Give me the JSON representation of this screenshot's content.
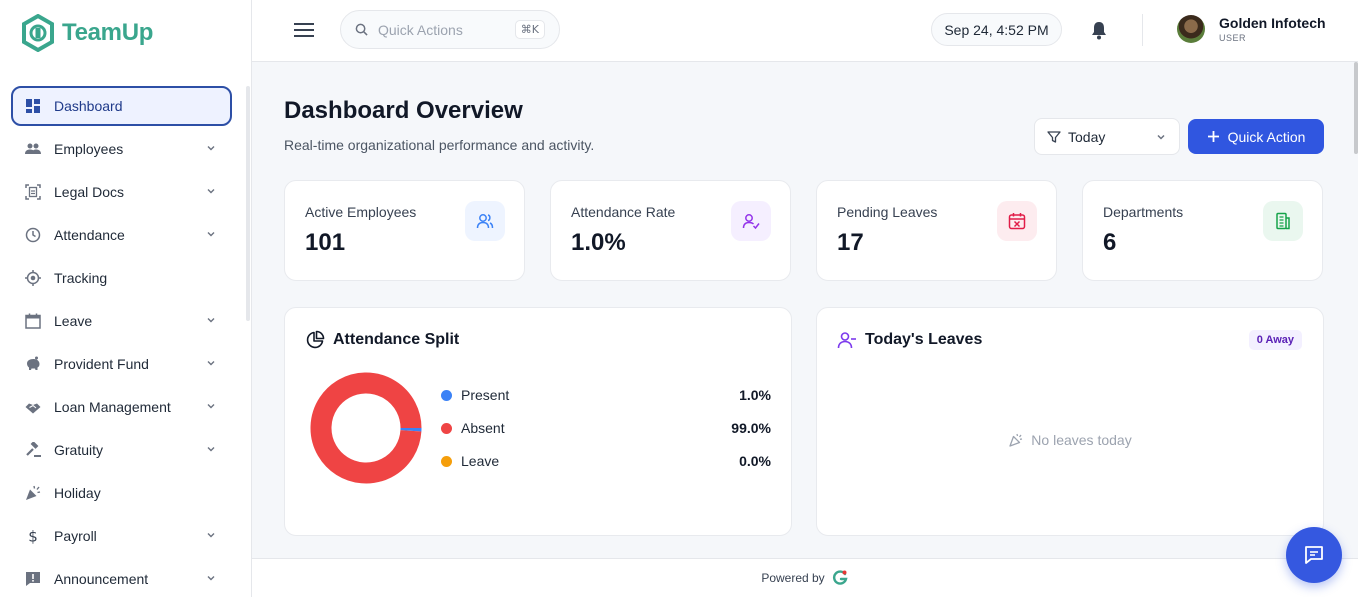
{
  "app": {
    "name": "TeamUp"
  },
  "sidebar": {
    "items": [
      {
        "label": "Dashboard",
        "icon": "dashboard-icon",
        "active": true,
        "expandable": false
      },
      {
        "label": "Employees",
        "icon": "people-icon",
        "expandable": true
      },
      {
        "label": "Legal Docs",
        "icon": "document-scan-icon",
        "expandable": true
      },
      {
        "label": "Attendance",
        "icon": "clock-icon",
        "expandable": true
      },
      {
        "label": "Tracking",
        "icon": "target-icon",
        "expandable": false
      },
      {
        "label": "Leave",
        "icon": "calendar-icon",
        "expandable": true
      },
      {
        "label": "Provident Fund",
        "icon": "piggy-bank-icon",
        "expandable": true
      },
      {
        "label": "Loan Management",
        "icon": "handshake-icon",
        "expandable": true
      },
      {
        "label": "Gratuity",
        "icon": "gavel-icon",
        "expandable": true
      },
      {
        "label": "Holiday",
        "icon": "party-icon",
        "expandable": false
      },
      {
        "label": "Payroll",
        "icon": "dollar-icon",
        "expandable": true
      },
      {
        "label": "Announcement",
        "icon": "announcement-icon",
        "expandable": true
      }
    ]
  },
  "header": {
    "search_placeholder": "Quick Actions",
    "shortcut": "⌘K",
    "datetime": "Sep 24, 4:52 PM",
    "user": {
      "name": "Golden Infotech",
      "role": "USER"
    }
  },
  "main": {
    "title": "Dashboard Overview",
    "subtitle": "Real-time organizational performance and activity.",
    "filter_value": "Today",
    "quick_action_label": "Quick Action",
    "stats": [
      {
        "label": "Active Employees",
        "value": "101",
        "icon": "users-icon",
        "color": "#3b82f6",
        "bg": "#eef4ff"
      },
      {
        "label": "Attendance Rate",
        "value": "1.0%",
        "icon": "user-check-icon",
        "color": "#9333ea",
        "bg": "#f5efff"
      },
      {
        "label": "Pending Leaves",
        "value": "17",
        "icon": "calendar-x-icon",
        "color": "#e11d48",
        "bg": "#fdecef"
      },
      {
        "label": "Departments",
        "value": "6",
        "icon": "building-icon",
        "color": "#16a34a",
        "bg": "#eaf7ef"
      }
    ],
    "attendance_split": {
      "title": "Attendance Split",
      "legend": [
        {
          "name": "Present",
          "value": "1.0%",
          "color": "#3b82f6"
        },
        {
          "name": "Absent",
          "value": "99.0%",
          "color": "#ef4444"
        },
        {
          "name": "Leave",
          "value": "0.0%",
          "color": "#f59e0b"
        }
      ]
    },
    "todays_leaves": {
      "title": "Today's Leaves",
      "badge": "0 Away",
      "empty_text": "No leaves today"
    }
  },
  "chart_data": {
    "type": "pie",
    "title": "Attendance Split",
    "categories": [
      "Present",
      "Absent",
      "Leave"
    ],
    "values": [
      1.0,
      99.0,
      0.0
    ],
    "colors": [
      "#3b82f6",
      "#ef4444",
      "#f59e0b"
    ],
    "legend": "right"
  },
  "footer": {
    "powered_by": "Powered by"
  }
}
